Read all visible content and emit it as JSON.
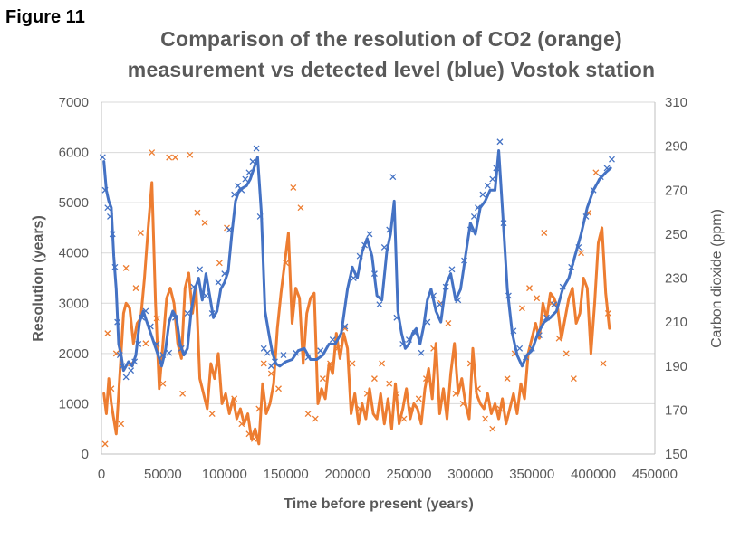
{
  "figure_label": "Figure 11",
  "chart_data": {
    "type": "line",
    "title": "Comparison of the resolution of CO2 (orange) measurement vs detected level (blue) Vostok  station",
    "title_lines": [
      "Comparison of the resolution of CO2 (orange)",
      "measurement vs detected level (blue) Vostok  station"
    ],
    "xlabel": "Time before present (years)",
    "ylabel": "Resolution (years)",
    "y2label": "Carbon dioxide (ppm)",
    "xlim": [
      0,
      450000
    ],
    "ylim": [
      0,
      7000
    ],
    "y2lim": [
      150,
      310
    ],
    "x_ticks": [
      "0",
      "50000",
      "100000",
      "150000",
      "200000",
      "250000",
      "300000",
      "350000",
      "400000",
      "450000"
    ],
    "y_ticks": [
      "0",
      "1000",
      "2000",
      "3000",
      "4000",
      "5000",
      "6000",
      "7000"
    ],
    "y2_ticks": [
      "150",
      "170",
      "190",
      "210",
      "230",
      "250",
      "270",
      "290",
      "310"
    ],
    "grid": "horizontal",
    "legend": "none",
    "series": [
      {
        "axis": "right",
        "color": "#4472C4",
        "x": [
          2000,
          4000,
          6000,
          8000,
          10000,
          12000,
          14000,
          16000,
          18000,
          20000,
          22000,
          25000,
          28000,
          31000,
          34000,
          37000,
          40000,
          43000,
          46000,
          49000,
          52000,
          55000,
          58000,
          61000,
          64000,
          67000,
          70000,
          73000,
          76000,
          79000,
          82000,
          85000,
          88000,
          91000,
          94000,
          97000,
          100000,
          103000,
          106000,
          109000,
          112000,
          115000,
          118000,
          121000,
          124000,
          127000,
          130000,
          133000,
          136000,
          139000,
          142000,
          145000,
          150000,
          155000,
          160000,
          165000,
          170000,
          175000,
          180000,
          185000,
          190000,
          195000,
          200000,
          204000,
          208000,
          212000,
          216000,
          220000,
          224000,
          228000,
          232000,
          235000,
          238000,
          241000,
          244000,
          247000,
          250000,
          253000,
          256000,
          259000,
          262000,
          265000,
          268000,
          272000,
          276000,
          280000,
          284000,
          288000,
          292000,
          296000,
          300000,
          304000,
          308000,
          312000,
          316000,
          320000,
          323000,
          326000,
          330000,
          334000,
          338000,
          342000,
          346000,
          350000,
          355000,
          360000,
          365000,
          370000,
          375000,
          380000,
          385000,
          390000,
          395000,
          400000,
          405000,
          410000,
          414000
        ],
        "y": [
          283,
          270,
          265,
          262,
          240,
          225,
          200,
          195,
          188,
          190,
          192,
          190,
          195,
          210,
          215,
          210,
          205,
          200,
          195,
          190,
          197,
          210,
          215,
          212,
          200,
          195,
          198,
          215,
          225,
          230,
          220,
          232,
          222,
          212,
          215,
          225,
          228,
          233,
          250,
          265,
          270,
          271,
          272,
          275,
          280,
          285,
          260,
          215,
          205,
          196,
          191,
          190,
          192,
          193,
          197,
          198,
          193,
          193,
          195,
          200,
          200,
          205,
          225,
          235,
          230,
          242,
          248,
          240,
          222,
          220,
          242,
          250,
          265,
          215,
          205,
          198,
          200,
          205,
          207,
          200,
          208,
          220,
          225,
          215,
          210,
          227,
          232,
          220,
          225,
          240,
          255,
          250,
          262,
          265,
          270,
          270,
          288,
          262,
          225,
          205,
          195,
          190,
          195,
          197,
          205,
          210,
          212,
          215,
          225,
          230,
          240,
          250,
          262,
          270,
          275,
          278,
          280
        ]
      },
      {
        "axis": "left",
        "color": "#ED7D31",
        "x": [
          2000,
          4000,
          6000,
          8000,
          10000,
          12000,
          14000,
          16000,
          18000,
          20000,
          23000,
          26000,
          29000,
          32000,
          35000,
          38000,
          41000,
          44000,
          47000,
          50000,
          53000,
          56000,
          59000,
          62000,
          65000,
          68000,
          71000,
          74000,
          77000,
          80000,
          83000,
          86000,
          89000,
          92000,
          95000,
          98000,
          101000,
          104000,
          107000,
          110000,
          113000,
          116000,
          119000,
          122000,
          125000,
          128000,
          131000,
          134000,
          137000,
          140000,
          143000,
          146000,
          149000,
          152000,
          155000,
          158000,
          161000,
          164000,
          167000,
          170000,
          173000,
          176000,
          179000,
          182000,
          185000,
          188000,
          191000,
          194000,
          197000,
          200000,
          203000,
          206000,
          209000,
          212000,
          215000,
          218000,
          221000,
          224000,
          227000,
          230000,
          233000,
          236000,
          239000,
          242000,
          245000,
          248000,
          251000,
          254000,
          257000,
          260000,
          263000,
          266000,
          269000,
          272000,
          275000,
          278000,
          281000,
          284000,
          287000,
          290000,
          293000,
          296000,
          299000,
          302000,
          305000,
          308000,
          311000,
          314000,
          317000,
          320000,
          323000,
          326000,
          329000,
          332000,
          335000,
          338000,
          341000,
          344000,
          347000,
          350000,
          353000,
          356000,
          359000,
          362000,
          365000,
          368000,
          371000,
          374000,
          377000,
          380000,
          383000,
          386000,
          389000,
          392000,
          395000,
          398000,
          401000,
          404000,
          407000,
          410000,
          413000
        ],
        "y": [
          1200,
          800,
          1500,
          1000,
          700,
          400,
          1200,
          2000,
          2800,
          3000,
          2900,
          2200,
          2600,
          2700,
          3500,
          4500,
          5400,
          3000,
          1300,
          2200,
          3100,
          3300,
          3000,
          2200,
          1900,
          3300,
          3600,
          2800,
          3300,
          1500,
          1200,
          900,
          1800,
          1500,
          2000,
          1000,
          1200,
          800,
          1100,
          700,
          900,
          600,
          800,
          300,
          500,
          200,
          1400,
          800,
          1000,
          1400,
          2500,
          3200,
          3800,
          4400,
          2600,
          3300,
          3100,
          1800,
          2800,
          3100,
          3200,
          1000,
          1300,
          1100,
          1800,
          1600,
          2400,
          1900,
          2400,
          2100,
          800,
          1200,
          600,
          1000,
          700,
          1300,
          800,
          700,
          1200,
          600,
          1100,
          500,
          1400,
          600,
          900,
          1300,
          700,
          1000,
          900,
          600,
          1300,
          1700,
          1100,
          2200,
          800,
          1300,
          700,
          1600,
          2200,
          1200,
          1500,
          1000,
          700,
          2100,
          1200,
          1000,
          900,
          1200,
          800,
          1000,
          700,
          1100,
          600,
          900,
          1200,
          800,
          1400,
          1100,
          2000,
          2300,
          2600,
          2300,
          3000,
          2700,
          3200,
          3100,
          2900,
          2300,
          2700,
          3100,
          3300,
          2600,
          2800,
          3500,
          3300,
          2000,
          3000,
          4200,
          4500,
          3200,
          2500
        ]
      }
    ],
    "markers": [
      {
        "axis": "right",
        "color": "#4472C4",
        "x": [
          1000,
          3000,
          5000,
          7000,
          9000,
          11000,
          13000,
          15000,
          17000,
          20000,
          24000,
          27000,
          30000,
          33000,
          36000,
          40000,
          45000,
          50000,
          55000,
          60000,
          65000,
          70000,
          75000,
          80000,
          85000,
          90000,
          95000,
          100000,
          104000,
          108000,
          111000,
          114000,
          117000,
          120000,
          123000,
          126000,
          129000,
          132000,
          135000,
          138000,
          141000,
          148000,
          158000,
          168000,
          178000,
          188000,
          198000,
          205000,
          210000,
          214000,
          218000,
          222000,
          226000,
          230000,
          234000,
          237000,
          240000,
          245000,
          250000,
          255000,
          260000,
          265000,
          270000,
          275000,
          280000,
          285000,
          290000,
          295000,
          300000,
          303000,
          306000,
          310000,
          314000,
          318000,
          321000,
          324000,
          327000,
          331000,
          335000,
          340000,
          345000,
          350000,
          356000,
          362000,
          368000,
          375000,
          382000,
          388000,
          394000,
          400000,
          406000,
          411000,
          415000
        ],
        "y": [
          285,
          270,
          262,
          258,
          250,
          235,
          210,
          195,
          190,
          185,
          188,
          192,
          200,
          212,
          215,
          208,
          200,
          195,
          196,
          212,
          198,
          214,
          226,
          234,
          222,
          214,
          228,
          232,
          252,
          268,
          272,
          270,
          275,
          278,
          283,
          289,
          258,
          198,
          196,
          190,
          192,
          195,
          196,
          194,
          197,
          202,
          208,
          230,
          240,
          245,
          250,
          232,
          218,
          244,
          252,
          276,
          212,
          200,
          202,
          205,
          196,
          210,
          222,
          218,
          226,
          234,
          220,
          238,
          252,
          258,
          262,
          268,
          272,
          275,
          280,
          292,
          255,
          222,
          206,
          198,
          194,
          198,
          204,
          212,
          218,
          226,
          235,
          244,
          258,
          270,
          276,
          280,
          284
        ]
      },
      {
        "axis": "left",
        "color": "#ED7D31",
        "x": [
          3000,
          5000,
          8000,
          12000,
          16000,
          20000,
          24000,
          28000,
          32000,
          36000,
          41000,
          45000,
          50000,
          55000,
          60000,
          66000,
          72000,
          78000,
          84000,
          90000,
          96000,
          102000,
          108000,
          114000,
          120000,
          124000,
          128000,
          132000,
          138000,
          144000,
          150000,
          156000,
          162000,
          168000,
          174000,
          180000,
          186000,
          192000,
          198000,
          204000,
          210000,
          216000,
          222000,
          228000,
          234000,
          240000,
          246000,
          252000,
          258000,
          264000,
          270000,
          276000,
          282000,
          288000,
          294000,
          300000,
          306000,
          312000,
          318000,
          324000,
          330000,
          336000,
          342000,
          348000,
          354000,
          360000,
          366000,
          372000,
          378000,
          384000,
          390000,
          396000,
          402000,
          408000,
          412000
        ],
        "y": [
          200,
          2400,
          1300,
          2000,
          600,
          3700,
          1800,
          3300,
          4400,
          2200,
          6000,
          2700,
          1400,
          5900,
          5900,
          1200,
          5950,
          4800,
          4600,
          800,
          3800,
          4500,
          1100,
          600,
          400,
          300,
          900,
          1800,
          1600,
          1300,
          3800,
          5300,
          4900,
          800,
          700,
          1500,
          1800,
          2100,
          2500,
          1800,
          900,
          1200,
          1500,
          1800,
          1400,
          1200,
          700,
          900,
          1100,
          1500,
          2100,
          3000,
          2600,
          1200,
          1000,
          1800,
          1300,
          700,
          500,
          900,
          1500,
          2000,
          2900,
          3300,
          3100,
          4400,
          3000,
          2300,
          2000,
          1500,
          4000,
          4800,
          5600,
          1800,
          2800
        ]
      }
    ]
  }
}
